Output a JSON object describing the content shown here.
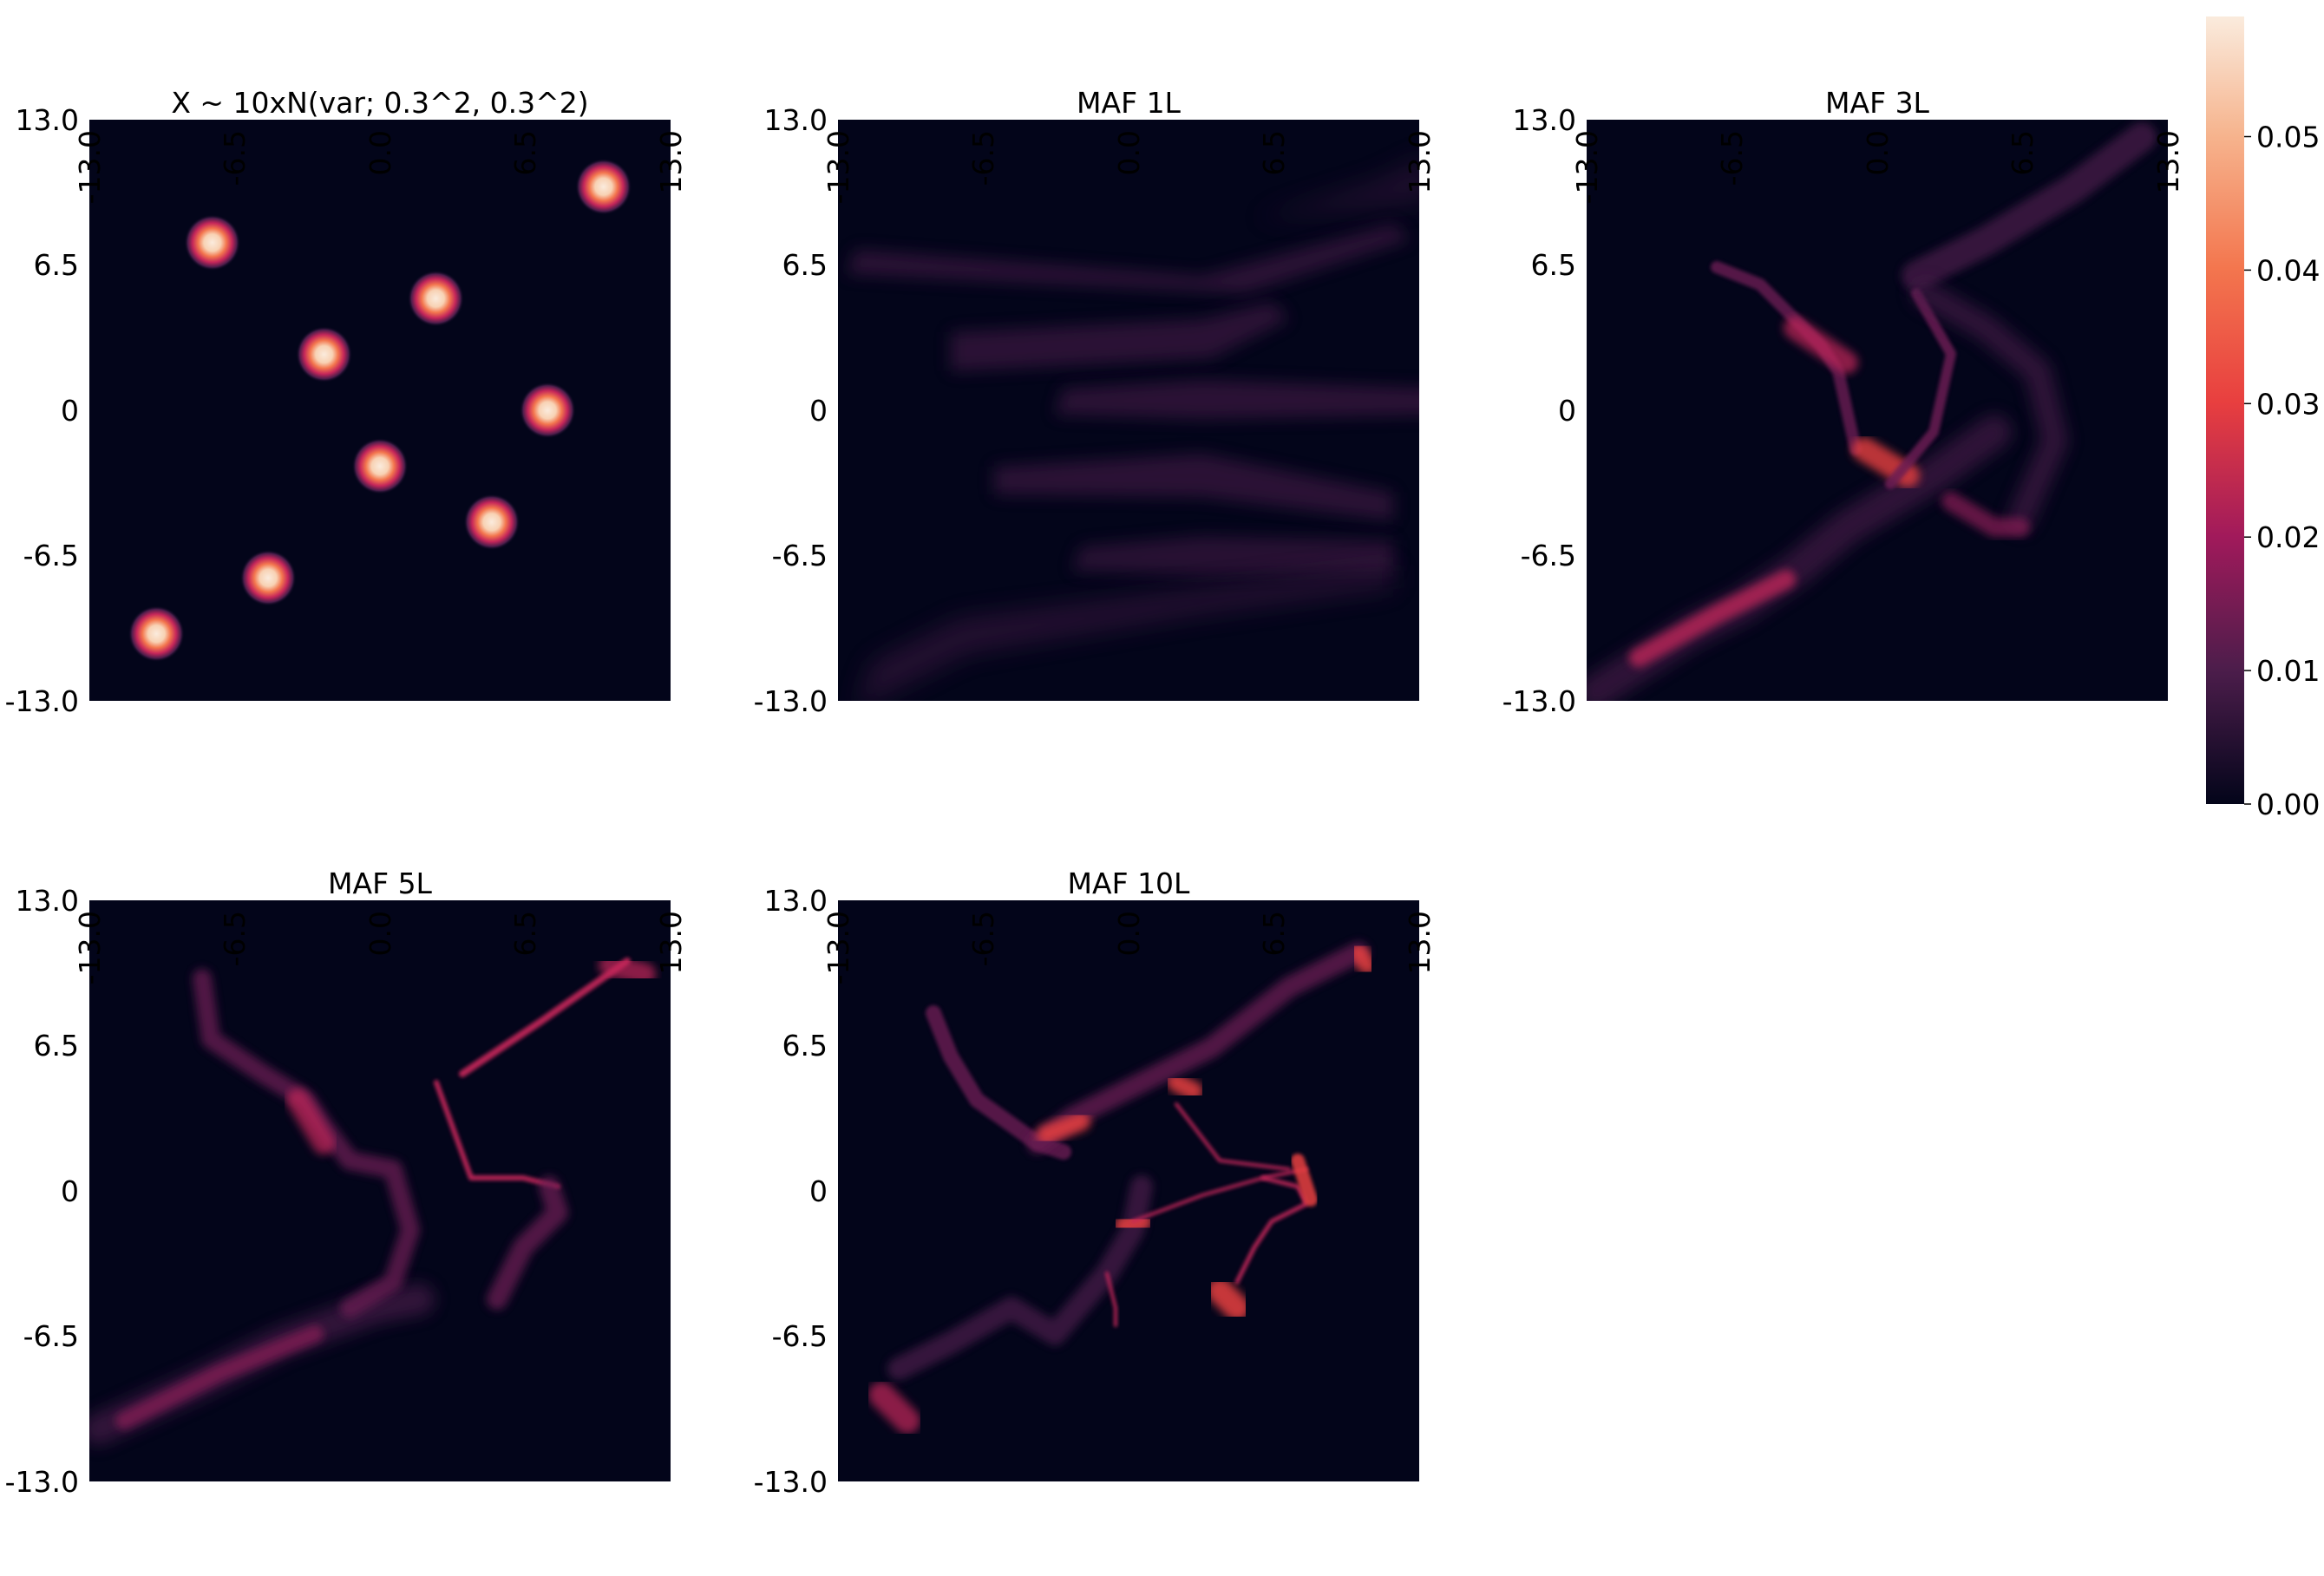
{
  "chart_data": [
    {
      "type": "heatmap",
      "title": "X ~ 10xN(var; 0.3^2, 0.3^2)",
      "xlim": [
        -13.0,
        13.0
      ],
      "ylim": [
        -13.0,
        13.0
      ],
      "xticks": [
        "-13.0",
        "-6.5",
        "0.0",
        "6.5",
        "13.0"
      ],
      "yticks": [
        "13.0",
        "6.5",
        "0",
        "-6.5",
        "-13.0"
      ],
      "sigma": 0.3,
      "modes": [
        {
          "x": -7.5,
          "y": 7.5
        },
        {
          "x": 2.5,
          "y": 5.0
        },
        {
          "x": 10.0,
          "y": 10.0
        },
        {
          "x": -2.5,
          "y": 2.5
        },
        {
          "x": 7.5,
          "y": 0.0
        },
        {
          "x": 0.0,
          "y": -2.5
        },
        {
          "x": 5.0,
          "y": -5.0
        },
        {
          "x": -5.0,
          "y": -7.5
        },
        {
          "x": -10.0,
          "y": -10.0
        }
      ]
    },
    {
      "type": "heatmap",
      "title": "MAF 1L",
      "xlim": [
        -13.0,
        13.0
      ],
      "ylim": [
        -13.0,
        13.0
      ],
      "xticks": [
        "-13.0",
        "-6.5",
        "0.0",
        "6.5",
        "13.0"
      ],
      "yticks": [
        "13.0",
        "6.5",
        "0",
        "-6.5",
        "-13.0"
      ]
    },
    {
      "type": "heatmap",
      "title": "MAF 3L",
      "xlim": [
        -13.0,
        13.0
      ],
      "ylim": [
        -13.0,
        13.0
      ],
      "xticks": [
        "-13.0",
        "-6.5",
        "0.0",
        "6.5",
        "13.0"
      ],
      "yticks": [
        "13.0",
        "6.5",
        "0",
        "-6.5",
        "-13.0"
      ]
    },
    {
      "type": "heatmap",
      "title": "MAF 5L",
      "xlim": [
        -13.0,
        13.0
      ],
      "ylim": [
        -13.0,
        13.0
      ],
      "xticks": [
        "-13.0",
        "-6.5",
        "0.0",
        "6.5",
        "13.0"
      ],
      "yticks": [
        "13.0",
        "6.5",
        "0",
        "-6.5",
        "-13.0"
      ]
    },
    {
      "type": "heatmap",
      "title": "MAF 10L",
      "xlim": [
        -13.0,
        13.0
      ],
      "ylim": [
        -13.0,
        13.0
      ],
      "xticks": [
        "-13.0",
        "-6.5",
        "0.0",
        "6.5",
        "13.0"
      ],
      "yticks": [
        "13.0",
        "6.5",
        "0",
        "-6.5",
        "-13.0"
      ]
    }
  ],
  "colorbar": {
    "colormap": "rocket",
    "range": [
      0.0,
      0.059
    ],
    "ticks": [
      0.0,
      0.01,
      0.02,
      0.03,
      0.04,
      0.05
    ],
    "tick_labels": [
      "0.00",
      "0.01",
      "0.02",
      "0.03",
      "0.04",
      "0.05"
    ],
    "colors": [
      "#03051a",
      "#4c1d4b",
      "#a11a5b",
      "#e83f3f",
      "#f69c73",
      "#faebdd"
    ]
  }
}
